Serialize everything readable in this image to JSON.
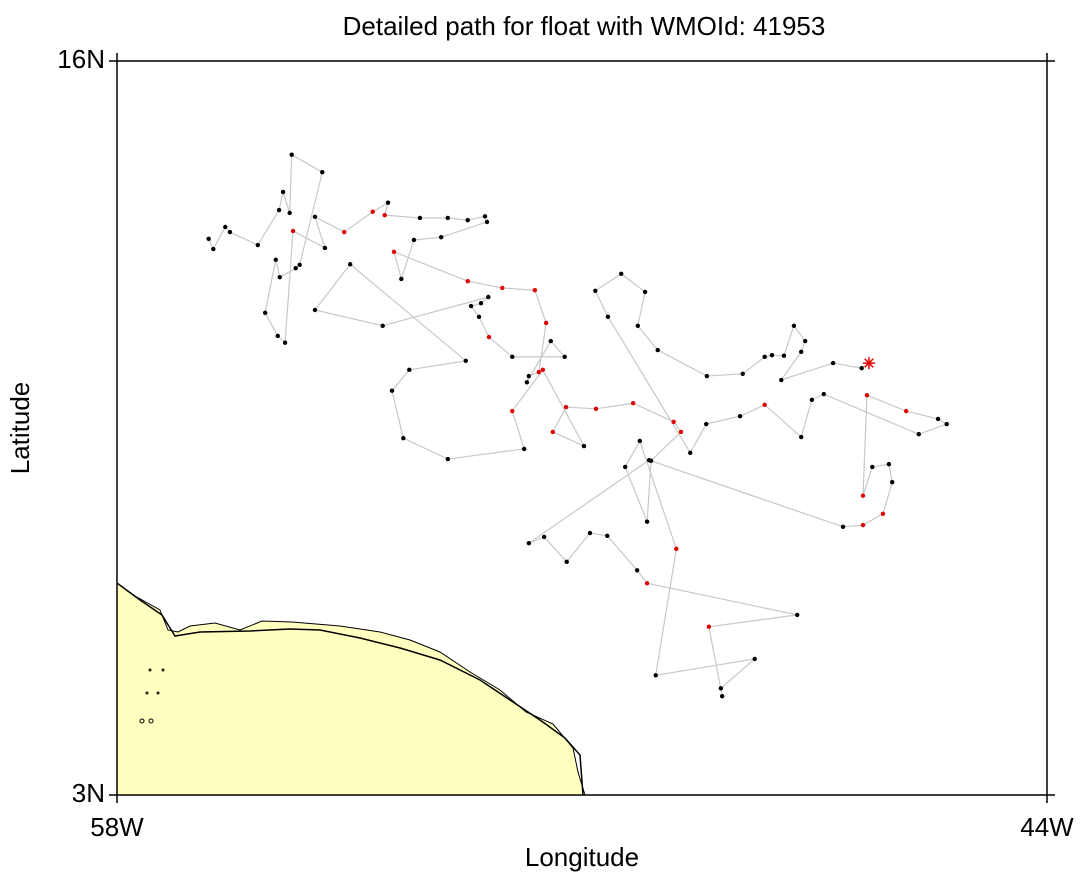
{
  "chart_data": {
    "type": "line",
    "title": "Detailed path for float with WMOId: 41953",
    "x_label": "Longitude",
    "y_label": "Latitude",
    "xlim": [
      -58,
      -44
    ],
    "ylim": [
      3,
      16
    ],
    "xticks": [
      {
        "value": -58,
        "label": "58W"
      },
      {
        "value": -44,
        "label": "44W"
      }
    ],
    "yticks": [
      {
        "value": 3,
        "label": "3N"
      },
      {
        "value": 16,
        "label": "16N"
      }
    ],
    "land_color": "#ffffc0",
    "series": [
      {
        "color": "#c8c8c8",
        "end_marker": "star",
        "x": [
          -56.62,
          -56.55,
          -56.37,
          -56.3,
          -55.88,
          -55.56,
          -55.5,
          -55.4,
          -55.37,
          -54.91,
          -55.25,
          -55.31,
          -55.55,
          -55.61,
          -55.77,
          -55.58,
          -55.47,
          -55.35,
          -54.87,
          -55.02,
          -54.58,
          -54.15,
          -53.92,
          -53.97,
          -53.44,
          -53.02,
          -52.72,
          -52.46,
          -52.43,
          -53.12,
          -53.53,
          -53.72,
          -53.83,
          -52.72,
          -52.2,
          -51.71,
          -51.54,
          -51.65,
          -51.8,
          -51.83,
          -51.47,
          -51.26,
          -52.05,
          -52.4,
          -52.55,
          -52.67,
          -52.52,
          -52.41,
          -54.0,
          -55.02,
          -54.49,
          -52.75,
          -53.6,
          -53.86,
          -53.69,
          -53.02,
          -51.87,
          -52.05,
          -51.59,
          -50.97,
          -51.44,
          -51.24,
          -50.79,
          -50.23,
          -49.62,
          -49.51,
          -49.96,
          -50.02,
          -50.35,
          -50.13,
          -49.58,
          -49.89,
          -48.4,
          -48.91,
          -48.89,
          -49.09,
          -47.76,
          -50.02,
          -50.17,
          -50.62,
          -50.88,
          -51.23,
          -51.57,
          -51.8,
          -49.99,
          -47.07,
          -46.77,
          -46.47,
          -46.33,
          -46.38,
          -46.63,
          -46.77,
          -46.71,
          -46.12,
          -45.64,
          -45.51,
          -45.93,
          -47.36,
          -47.54,
          -47.7,
          -48.25,
          -48.62,
          -49.13,
          -49.37,
          -50.61,
          -50.8,
          -50.41,
          -50.05,
          -50.16,
          -49.86,
          -49.12,
          -48.58,
          -48.25,
          -48.14,
          -47.96,
          -47.81,
          -47.64,
          -47.7,
          -48.0,
          -47.22,
          -46.79,
          -46.68
        ],
        "y": [
          12.85,
          12.67,
          13.06,
          12.97,
          12.74,
          13.36,
          13.68,
          13.31,
          14.34,
          14.03,
          12.39,
          12.33,
          12.17,
          12.48,
          11.54,
          11.13,
          11.01,
          12.99,
          12.69,
          13.24,
          12.97,
          13.33,
          13.49,
          13.27,
          13.22,
          13.22,
          13.18,
          13.25,
          13.15,
          12.88,
          12.83,
          12.14,
          12.62,
          12.1,
          11.98,
          11.94,
          11.36,
          10.49,
          10.42,
          10.31,
          11.04,
          10.76,
          10.76,
          11.11,
          11.47,
          11.66,
          11.71,
          11.82,
          11.31,
          11.59,
          12.4,
          10.69,
          10.53,
          10.16,
          9.32,
          8.95,
          9.13,
          9.8,
          10.53,
          9.18,
          9.43,
          9.87,
          9.84,
          9.94,
          9.61,
          9.43,
          8.92,
          7.84,
          8.81,
          9.27,
          7.36,
          5.12,
          5.41,
          4.89,
          4.75,
          5.98,
          6.19,
          6.75,
          6.98,
          7.59,
          7.64,
          7.13,
          7.57,
          7.46,
          8.93,
          7.75,
          7.78,
          7.98,
          8.54,
          8.86,
          8.81,
          8.3,
          10.08,
          9.8,
          9.66,
          9.57,
          9.39,
          10.1,
          10.0,
          9.34,
          9.91,
          9.71,
          9.57,
          9.06,
          11.47,
          11.93,
          12.23,
          11.91,
          11.31,
          10.88,
          10.42,
          10.46,
          10.76,
          10.79,
          10.78,
          11.31,
          11.04,
          10.85,
          10.35,
          10.65,
          10.56,
          10.65
        ],
        "marker_colors": [
          "#000000",
          "#000000",
          "#000000",
          "#000000",
          "#000000",
          "#000000",
          "#000000",
          "#000000",
          "#000000",
          "#000000",
          "#000000",
          "#000000",
          "#000000",
          "#000000",
          "#000000",
          "#000000",
          "#000000",
          "#e00000",
          "#000000",
          "#000000",
          "#e00000",
          "#e00000",
          "#000000",
          "#e00000",
          "#000000",
          "#000000",
          "#000000",
          "#000000",
          "#000000",
          "#000000",
          "#000000",
          "#000000",
          "#e00000",
          "#e00000",
          "#e00000",
          "#e00000",
          "#e00000",
          "#e00000",
          "#000000",
          "#000000",
          "#000000",
          "#000000",
          "#000000",
          "#e00000",
          "#000000",
          "#000000",
          "#000000",
          "#000000",
          "#000000",
          "#000000",
          "#000000",
          "#000000",
          "#000000",
          "#000000",
          "#000000",
          "#000000",
          "#000000",
          "#e00000",
          "#e00000",
          "#000000",
          "#e00000",
          "#e00000",
          "#e00000",
          "#e00000",
          "#e00000",
          "#e00000",
          "#000000",
          "#000000",
          "#000000",
          "#000000",
          "#e00000",
          "#000000",
          "#000000",
          "#000000",
          "#000000",
          "#e00000",
          "#000000",
          "#e00000",
          "#000000",
          "#000000",
          "#000000",
          "#000000",
          "#000000",
          "#000000",
          "#000000",
          "#000000",
          "#e00000",
          "#e00000",
          "#000000",
          "#000000",
          "#000000",
          "#e00000",
          "#e00000",
          "#e00000",
          "#000000",
          "#000000",
          "#000000",
          "#000000",
          "#000000",
          "#000000",
          "#e00000",
          "#000000",
          "#000000",
          "#000000",
          "#000000",
          "#000000",
          "#000000",
          "#000000",
          "#000000",
          "#000000",
          "#000000",
          "#000000",
          "#000000",
          "#000000",
          "#000000",
          "#000000",
          "#000000",
          "#000000",
          "#000000",
          "#000000",
          "#000000",
          "#e00000"
        ]
      }
    ]
  }
}
